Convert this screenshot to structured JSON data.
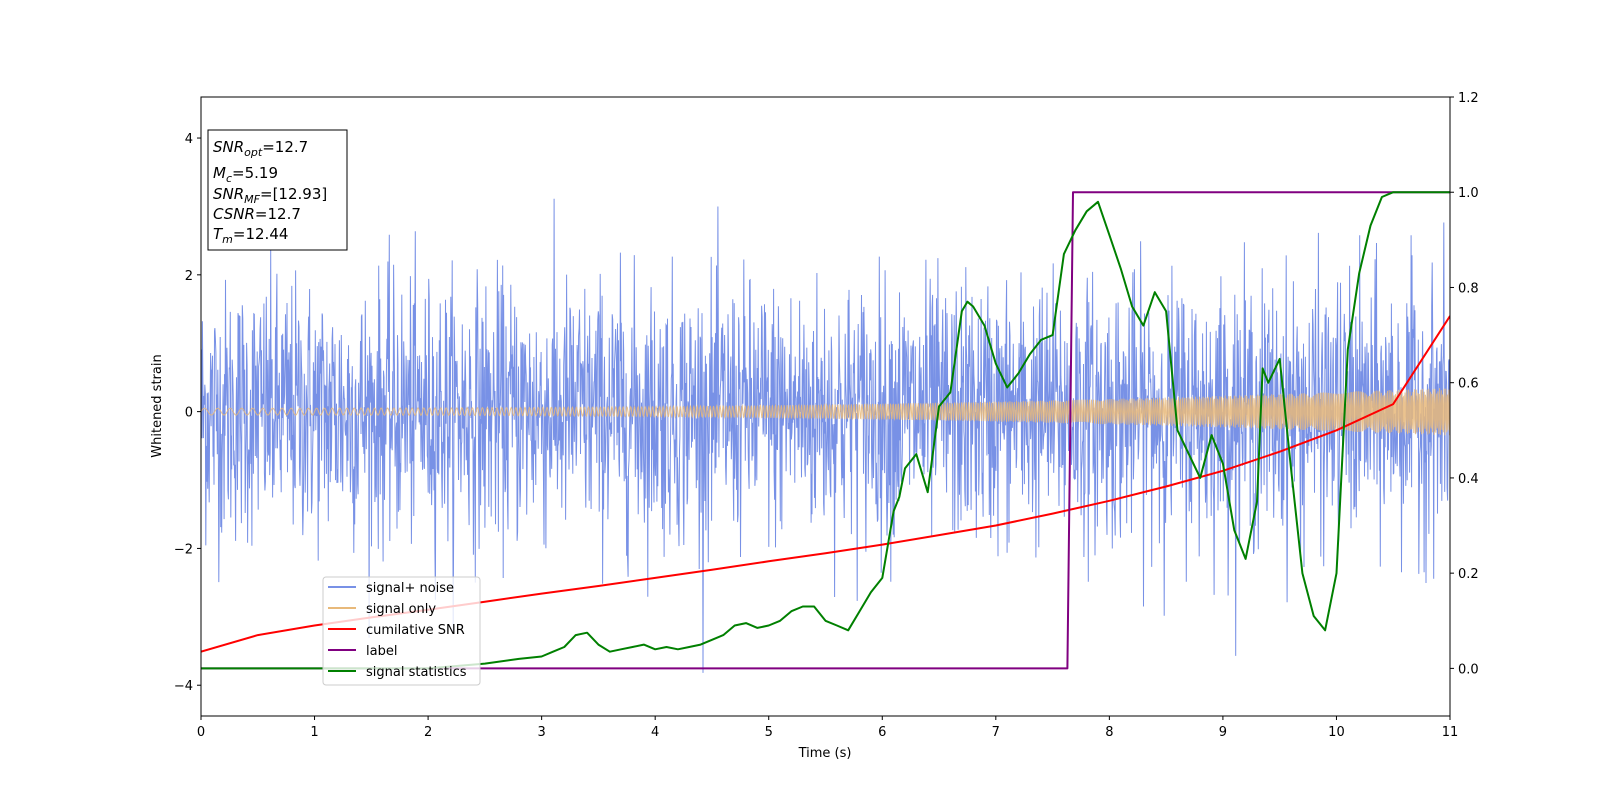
{
  "chart_data": {
    "type": "line",
    "xlabel": "Time (s)",
    "ylabel": "Whitened strain",
    "xlim": [
      0,
      11
    ],
    "ylim": [
      -4.45,
      4.6
    ],
    "y2lim": [
      -0.1,
      1.2
    ],
    "xticks": [
      "0",
      "1",
      "2",
      "3",
      "4",
      "5",
      "6",
      "7",
      "8",
      "9",
      "10",
      "11"
    ],
    "yticks": [
      "−4",
      "−2",
      "0",
      "2",
      "4"
    ],
    "y2ticks": [
      "0.0",
      "0.2",
      "0.4",
      "0.6",
      "0.8",
      "1.0",
      "1.2"
    ],
    "legend_position": "lower-left",
    "info_box": {
      "snr_opt": "=12.7",
      "mc": "=5.19",
      "snr_mf": "=[12.93]",
      "csnr": "=12.7",
      "tm": "=12.44"
    },
    "series": [
      {
        "name": "signal+ noise",
        "axis": "left",
        "color": "#7891e6",
        "kind": "noise",
        "sigma": 0.95,
        "range": [
          -4.05,
          4.2
        ]
      },
      {
        "name": "signal only",
        "axis": "left",
        "color": "#e8b97a",
        "kind": "chirp",
        "amplitude_start": 0.05,
        "amplitude_end": 0.35
      },
      {
        "name": "cumilative SNR",
        "axis": "right",
        "color": "#ff0000",
        "x": [
          0,
          0.5,
          1,
          1.5,
          2,
          2.5,
          3,
          3.5,
          4,
          4.5,
          5,
          5.5,
          6,
          6.5,
          7,
          7.5,
          8,
          8.5,
          9,
          9.5,
          10,
          10.5,
          11
        ],
        "y": [
          0.035,
          0.07,
          0.09,
          0.107,
          0.123,
          0.14,
          0.157,
          0.173,
          0.19,
          0.207,
          0.225,
          0.242,
          0.26,
          0.28,
          0.3,
          0.325,
          0.352,
          0.382,
          0.415,
          0.455,
          0.5,
          0.555,
          0.74
        ]
      },
      {
        "name": "label",
        "axis": "right",
        "color": "#800080",
        "x": [
          0,
          7.63,
          7.68,
          11
        ],
        "y": [
          0,
          0,
          1,
          1
        ]
      },
      {
        "name": "signal statistics",
        "axis": "right",
        "color": "#008000",
        "x": [
          0,
          1,
          2,
          2.5,
          2.8,
          3.0,
          3.1,
          3.2,
          3.3,
          3.4,
          3.5,
          3.6,
          3.7,
          3.8,
          3.9,
          4.0,
          4.1,
          4.2,
          4.3,
          4.4,
          4.5,
          4.6,
          4.7,
          4.8,
          4.9,
          5.0,
          5.1,
          5.2,
          5.3,
          5.4,
          5.5,
          5.6,
          5.7,
          5.8,
          5.9,
          6.0,
          6.1,
          6.15,
          6.2,
          6.3,
          6.4,
          6.5,
          6.6,
          6.7,
          6.75,
          6.8,
          6.9,
          7.0,
          7.1,
          7.2,
          7.3,
          7.4,
          7.5,
          7.6,
          7.7,
          7.8,
          7.9,
          8.0,
          8.1,
          8.2,
          8.3,
          8.4,
          8.5,
          8.6,
          8.7,
          8.8,
          8.9,
          9.0,
          9.1,
          9.2,
          9.3,
          9.35,
          9.4,
          9.5,
          9.6,
          9.7,
          9.8,
          9.9,
          10.0,
          10.1,
          10.2,
          10.3,
          10.4,
          10.5,
          11
        ],
        "y": [
          0,
          0,
          0,
          0.01,
          0.02,
          0.025,
          0.035,
          0.045,
          0.07,
          0.075,
          0.05,
          0.035,
          0.04,
          0.045,
          0.05,
          0.04,
          0.045,
          0.04,
          0.045,
          0.05,
          0.06,
          0.07,
          0.09,
          0.095,
          0.085,
          0.09,
          0.1,
          0.12,
          0.13,
          0.13,
          0.1,
          0.09,
          0.08,
          0.12,
          0.16,
          0.19,
          0.33,
          0.36,
          0.42,
          0.45,
          0.37,
          0.55,
          0.58,
          0.75,
          0.77,
          0.76,
          0.72,
          0.64,
          0.59,
          0.62,
          0.66,
          0.69,
          0.7,
          0.87,
          0.92,
          0.96,
          0.98,
          0.91,
          0.84,
          0.76,
          0.72,
          0.79,
          0.75,
          0.5,
          0.45,
          0.4,
          0.49,
          0.43,
          0.29,
          0.23,
          0.35,
          0.63,
          0.6,
          0.65,
          0.42,
          0.2,
          0.11,
          0.08,
          0.2,
          0.67,
          0.83,
          0.93,
          0.99,
          1.0,
          1.0
        ]
      }
    ]
  }
}
